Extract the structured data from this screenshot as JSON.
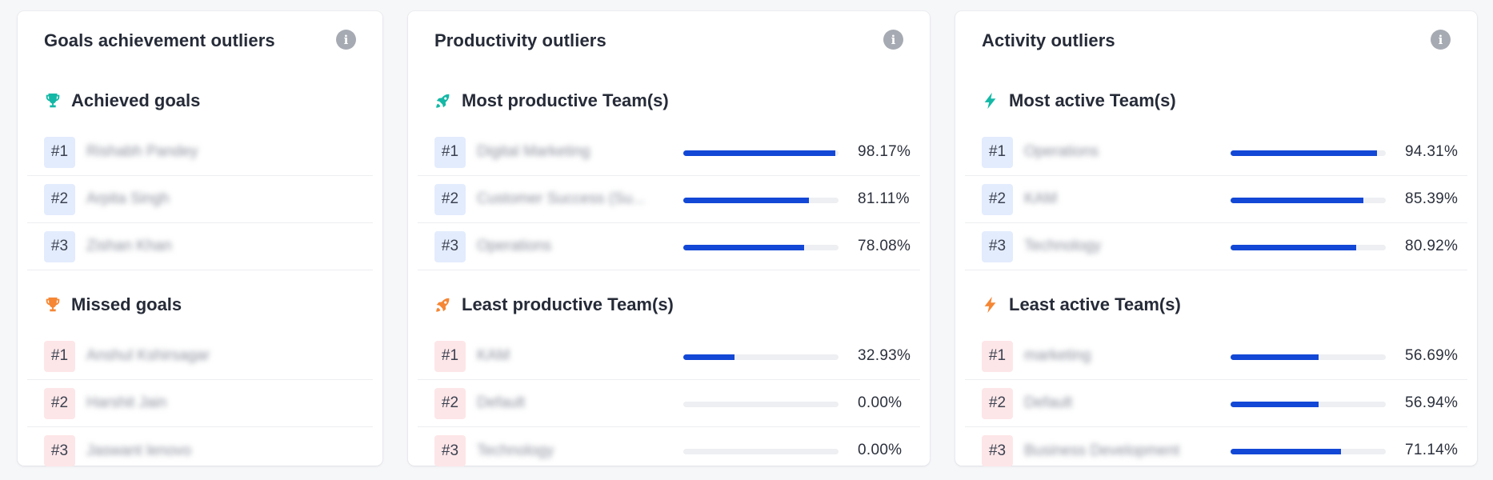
{
  "cards": {
    "goals": {
      "title": "Goals achievement outliers",
      "info": "i",
      "achieved": {
        "heading": "Achieved goals",
        "icon": "trophy-icon",
        "color": "#14b8a6",
        "items": [
          {
            "rank": "#1",
            "name": "Rishabh Pandey"
          },
          {
            "rank": "#2",
            "name": "Arpita Singh"
          },
          {
            "rank": "#3",
            "name": "Zishan Khan"
          }
        ]
      },
      "missed": {
        "heading": "Missed goals",
        "icon": "trophy-icon",
        "color": "#f58634",
        "items": [
          {
            "rank": "#1",
            "name": "Anshul Kshirsagar"
          },
          {
            "rank": "#2",
            "name": "Harshit Jain"
          },
          {
            "rank": "#3",
            "name": "Jaswant lenovo"
          }
        ]
      }
    },
    "productivity": {
      "title": "Productivity outliers",
      "info": "i",
      "most": {
        "heading": "Most productive Team(s)",
        "icon": "rocket-icon",
        "color": "#14b8a6",
        "items": [
          {
            "rank": "#1",
            "name": "Digital Marketing",
            "value": 98.17,
            "label": "98.17%"
          },
          {
            "rank": "#2",
            "name": "Customer Success (Su...",
            "value": 81.11,
            "label": "81.11%"
          },
          {
            "rank": "#3",
            "name": "Operations",
            "value": 78.08,
            "label": "78.08%"
          }
        ]
      },
      "least": {
        "heading": "Least productive Team(s)",
        "icon": "rocket-icon",
        "color": "#f58634",
        "items": [
          {
            "rank": "#1",
            "name": "KAM",
            "value": 32.93,
            "label": "32.93%"
          },
          {
            "rank": "#2",
            "name": "Default",
            "value": 0,
            "label": "0.00%"
          },
          {
            "rank": "#3",
            "name": "Technology",
            "value": 0,
            "label": "0.00%"
          }
        ]
      }
    },
    "activity": {
      "title": "Activity outliers",
      "info": "i",
      "most": {
        "heading": "Most active Team(s)",
        "icon": "lightning-icon",
        "color": "#14b8a6",
        "items": [
          {
            "rank": "#1",
            "name": "Operations",
            "value": 94.31,
            "label": "94.31%"
          },
          {
            "rank": "#2",
            "name": "KAM",
            "value": 85.39,
            "label": "85.39%"
          },
          {
            "rank": "#3",
            "name": "Technology",
            "value": 80.92,
            "label": "80.92%"
          }
        ]
      },
      "least": {
        "heading": "Least active Team(s)",
        "icon": "lightning-icon",
        "color": "#f58634",
        "items": [
          {
            "rank": "#1",
            "name": "marketing",
            "value": 56.69,
            "label": "56.69%"
          },
          {
            "rank": "#2",
            "name": "Default",
            "value": 56.94,
            "label": "56.94%"
          },
          {
            "rank": "#3",
            "name": "Business Development",
            "value": 71.14,
            "label": "71.14%"
          }
        ]
      }
    }
  },
  "colors": {
    "bar": "#1348d6",
    "track": "#eeeff2",
    "rank_top_bg": "#e3ecfd",
    "rank_bottom_bg": "#fde6e8"
  }
}
